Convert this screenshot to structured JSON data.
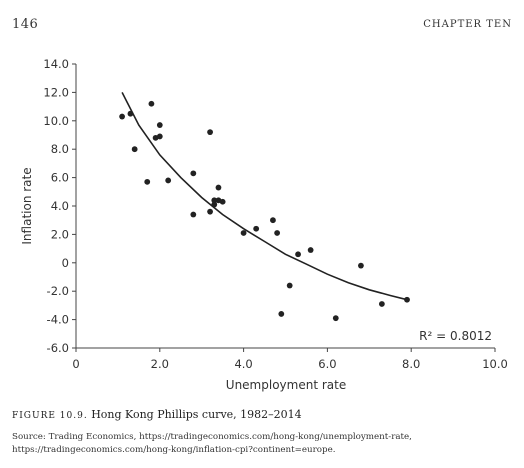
{
  "header": {
    "page_number": "146",
    "running_head": "CHAPTER TEN"
  },
  "figure": {
    "label": "FIGURE 10.9.",
    "title": "Hong Kong Phillips curve, 1982–2014",
    "source": "Source: Trading Economics, https://tradingeconomics.com/hong-kong/unemployment-rate, https://tradingeconomics.com/hong-kong/inflation-cpi?continent=europe."
  },
  "chart_data": {
    "type": "scatter",
    "title": "",
    "xlabel": "Unemployment rate",
    "ylabel": "Inflation rate",
    "xlim": [
      0,
      10
    ],
    "ylim": [
      -6,
      14
    ],
    "xticks": [
      0,
      2,
      4,
      6,
      8,
      10
    ],
    "xtick_labels": [
      "0",
      "2.0",
      "4.0",
      "6.0",
      "8.0",
      "10.0"
    ],
    "yticks": [
      14,
      12,
      10,
      8,
      6,
      4,
      2,
      0,
      -2,
      -4,
      -6
    ],
    "ytick_labels": [
      "14.0",
      "12.0",
      "10.0",
      "8.0",
      "6.0",
      "4.0",
      "2.0",
      "0",
      "-2.0",
      "-4.0",
      "-6.0"
    ],
    "grid": false,
    "annotation": "R² = 0.8012",
    "point_color": "#222222",
    "points": [
      {
        "x": 1.1,
        "y": 10.3
      },
      {
        "x": 1.3,
        "y": 10.5
      },
      {
        "x": 1.4,
        "y": 8.0
      },
      {
        "x": 1.7,
        "y": 5.7
      },
      {
        "x": 1.8,
        "y": 11.2
      },
      {
        "x": 1.9,
        "y": 8.8
      },
      {
        "x": 2.0,
        "y": 8.9
      },
      {
        "x": 2.0,
        "y": 9.7
      },
      {
        "x": 2.2,
        "y": 5.8
      },
      {
        "x": 2.8,
        "y": 6.3
      },
      {
        "x": 2.8,
        "y": 3.4
      },
      {
        "x": 3.2,
        "y": 9.2
      },
      {
        "x": 3.2,
        "y": 3.6
      },
      {
        "x": 3.3,
        "y": 4.4
      },
      {
        "x": 3.3,
        "y": 4.1
      },
      {
        "x": 3.4,
        "y": 5.3
      },
      {
        "x": 3.4,
        "y": 4.4
      },
      {
        "x": 3.5,
        "y": 4.3
      },
      {
        "x": 4.0,
        "y": 2.1
      },
      {
        "x": 4.3,
        "y": 2.4
      },
      {
        "x": 4.7,
        "y": 3.0
      },
      {
        "x": 4.8,
        "y": 2.1
      },
      {
        "x": 4.9,
        "y": -3.6
      },
      {
        "x": 5.1,
        "y": -1.6
      },
      {
        "x": 5.3,
        "y": 0.6
      },
      {
        "x": 5.6,
        "y": 0.9
      },
      {
        "x": 6.2,
        "y": -3.9
      },
      {
        "x": 6.8,
        "y": -0.2
      },
      {
        "x": 7.3,
        "y": -2.9
      },
      {
        "x": 7.9,
        "y": -2.6
      }
    ],
    "trendline": {
      "type": "logarithmic",
      "color": "#222222",
      "x": [
        1.1,
        1.5,
        2.0,
        2.5,
        3.0,
        3.5,
        4.0,
        4.5,
        5.0,
        5.5,
        6.0,
        6.5,
        7.0,
        7.5,
        7.9
      ],
      "y": [
        12.0,
        9.7,
        7.6,
        6.0,
        4.6,
        3.4,
        2.4,
        1.5,
        0.6,
        -0.1,
        -0.8,
        -1.4,
        -1.9,
        -2.3,
        -2.6
      ]
    }
  }
}
